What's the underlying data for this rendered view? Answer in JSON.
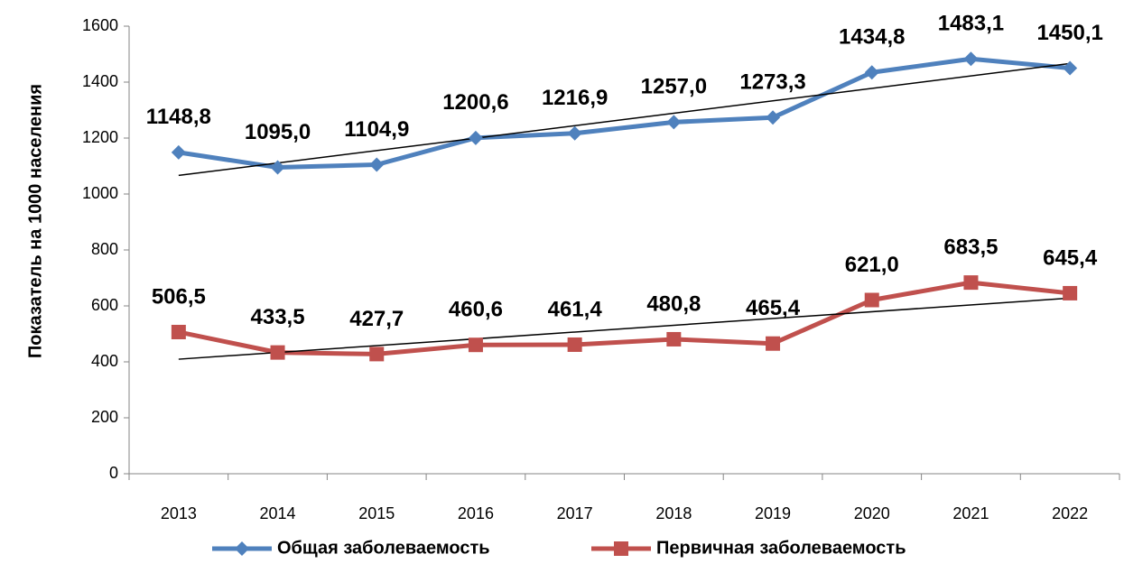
{
  "chart_data": {
    "type": "line",
    "y_label": "Показатель на 1000 населения",
    "categories": [
      "2013",
      "2014",
      "2015",
      "2016",
      "2017",
      "2018",
      "2019",
      "2020",
      "2021",
      "2022"
    ],
    "series": [
      {
        "name": "Общая заболеваемость",
        "color": "#4f81bd",
        "label_color": "#558ed5",
        "marker": "diamond",
        "trendline": true,
        "values": [
          1148.8,
          1095.0,
          1104.9,
          1200.6,
          1216.9,
          1257.0,
          1273.3,
          1434.8,
          1483.1,
          1450.1
        ],
        "value_labels": [
          "1148,8",
          "1095,0",
          "1104,9",
          "1200,6",
          "1216,9",
          "1257,0",
          "1273,3",
          "1434,8",
          "1483,1",
          "1450,1"
        ]
      },
      {
        "name": "Первичная заболеваемость",
        "color": "#c0504d",
        "label_color": "#c0504d",
        "marker": "square",
        "trendline": true,
        "values": [
          506.5,
          433.5,
          427.7,
          460.6,
          461.4,
          480.8,
          465.4,
          621.0,
          683.5,
          645.4
        ],
        "value_labels": [
          "506,5",
          "433,5",
          "427,7",
          "460,6",
          "461,4",
          "480,8",
          "465,4",
          "621,0",
          "683,5",
          "645,4"
        ]
      }
    ],
    "ylim": [
      0,
      1600
    ],
    "yticks": [
      0,
      200,
      400,
      600,
      800,
      1000,
      1200,
      1400,
      1600
    ],
    "grid": false,
    "legend": "bottom"
  }
}
